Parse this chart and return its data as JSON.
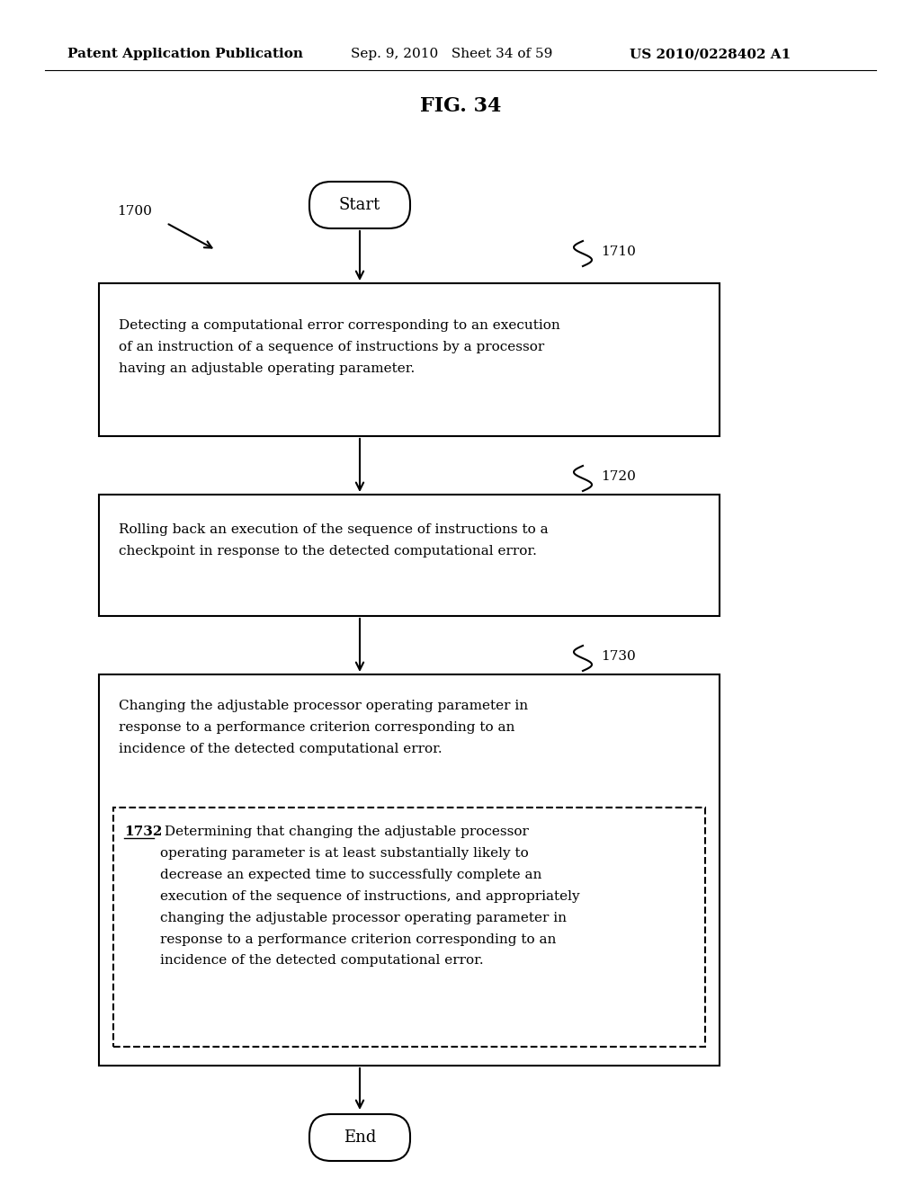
{
  "bg_color": "#ffffff",
  "header_left": "Patent Application Publication",
  "header_mid": "Sep. 9, 2010   Sheet 34 of 59",
  "header_right": "US 2010/0228402 A1",
  "fig_title": "FIG. 34",
  "start_label": "Start",
  "end_label": "End",
  "label_1700": "1700",
  "label_1710": "1710",
  "label_1720": "1720",
  "label_1730": "1730",
  "label_1732": "1732",
  "box1_text": "Detecting a computational error corresponding to an execution\nof an instruction of a sequence of instructions by a processor\nhaving an adjustable operating parameter.",
  "box2_text": "Rolling back an execution of the sequence of instructions to a\ncheckpoint in response to the detected computational error.",
  "box3_text": "Changing the adjustable processor operating parameter in\nresponse to a performance criterion corresponding to an\nincidence of the detected computational error.",
  "box3_inner_text": " Determining that changing the adjustable processor\noperating parameter is at least substantially likely to\ndecrease an expected time to successfully complete an\nexecution of the sequence of instructions, and appropriately\nchanging the adjustable processor operating parameter in\nresponse to a performance criterion corresponding to an\nincidence of the detected computational error.",
  "line_color": "#000000",
  "text_color": "#000000",
  "font_size_header": 11,
  "font_size_title": 16,
  "font_size_box": 11,
  "font_size_label": 11
}
